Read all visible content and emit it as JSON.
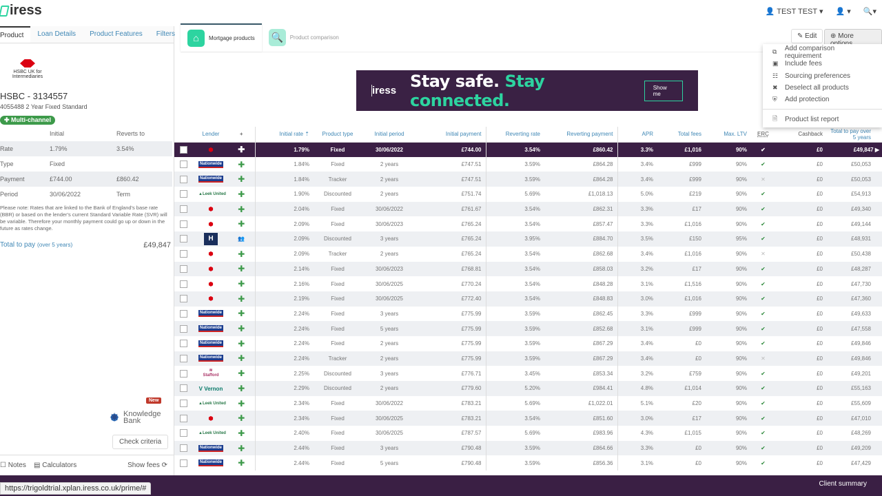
{
  "app": {
    "logo": "iress",
    "user": "TEST TEST"
  },
  "left": {
    "tabs": [
      "Product",
      "Loan Details",
      "Product Features",
      "Filters"
    ],
    "lender_logo": "HSBC UK for Intermediaries",
    "title": "HSBC - 3134557",
    "subtitle": "4055488 2 Year Fixed Standard",
    "badge": "Multi-channel",
    "headers": [
      "",
      "Initial",
      "Reverts to"
    ],
    "rows": [
      [
        "Rate",
        "1.79%",
        "3.54%"
      ],
      [
        "Type",
        "Fixed",
        ""
      ],
      [
        "Payment",
        "£744.00",
        "£860.42"
      ],
      [
        "Period",
        "30/06/2022",
        "Term"
      ]
    ],
    "note": "Please note: Rates that are linked to the Bank of England's base rate (BBR) or based on the lender's current Standard Variable Rate (SVR) will be variable. Therefore your monthly payment could go up or down in the future as rates change.",
    "total_label": "Total to pay",
    "total_sub": "(over 5 years)",
    "total_value": "£49,847",
    "new_badge": "New",
    "kb_line1": "Knowledge",
    "kb_line2": "Bank",
    "check_criteria": "Check criteria",
    "notes": "Notes",
    "calculators": "Calculators",
    "show_fees": "Show fees"
  },
  "main": {
    "tabs": [
      "Mortgage products",
      "Product comparison"
    ],
    "banner": {
      "logo": "iress",
      "text1": "Stay safe.",
      "text2": "Stay connected.",
      "button": "Show me"
    },
    "edit": "Edit",
    "more_options": "More options",
    "menu": [
      {
        "icon": "compare-icon",
        "label": "Add comparison requirement"
      },
      {
        "icon": "money-icon",
        "label": "Include fees"
      },
      {
        "icon": "table-icon",
        "label": "Sourcing preferences"
      },
      {
        "icon": "x-icon",
        "label": "Deselect all products"
      },
      {
        "icon": "shield-icon",
        "label": "Add protection"
      },
      {
        "icon": "report-icon",
        "label": "Product list report"
      }
    ],
    "columns": [
      "Lender",
      "+",
      "Initial rate ⇡",
      "Product type",
      "Initial period",
      "Initial payment",
      "Reverting rate",
      "Reverting payment",
      "APR",
      "Total fees",
      "Max. LTV",
      "ERC",
      "Cashback",
      "Total to pay over 5 years"
    ],
    "rows": [
      [
        "HSBC",
        "1.79%",
        "Fixed",
        "30/06/2022",
        "£744.00",
        "3.54%",
        "£860.42",
        "3.3%",
        "£1,016",
        "90%",
        true,
        "£0",
        "£49,847"
      ],
      [
        "Nationwide",
        "1.84%",
        "Fixed",
        "2 years",
        "£747.51",
        "3.59%",
        "£864.28",
        "3.4%",
        "£999",
        "90%",
        true,
        "£0",
        "£50,053"
      ],
      [
        "Nationwide",
        "1.84%",
        "Tracker",
        "2 years",
        "£747.51",
        "3.59%",
        "£864.28",
        "3.4%",
        "£999",
        "90%",
        false,
        "£0",
        "£50,053"
      ],
      [
        "Leek United",
        "1.90%",
        "Discounted",
        "2 years",
        "£751.74",
        "5.69%",
        "£1,018.13",
        "5.0%",
        "£219",
        "90%",
        true,
        "£0",
        "£54,913"
      ],
      [
        "HSBC",
        "2.04%",
        "Fixed",
        "30/06/2022",
        "£761.67",
        "3.54%",
        "£862.31",
        "3.3%",
        "£17",
        "90%",
        true,
        "£0",
        "£49,340"
      ],
      [
        "HSBC",
        "2.09%",
        "Fixed",
        "30/06/2023",
        "£765.24",
        "3.54%",
        "£857.47",
        "3.3%",
        "£1,016",
        "90%",
        true,
        "£0",
        "£49,144"
      ],
      [
        "H",
        "2.09%",
        "Discounted",
        "3 years",
        "£765.24",
        "3.95%",
        "£884.70",
        "3.5%",
        "£150",
        "95%",
        true,
        "£0",
        "£48,931"
      ],
      [
        "HSBC",
        "2.09%",
        "Tracker",
        "2 years",
        "£765.24",
        "3.54%",
        "£862.68",
        "3.4%",
        "£1,016",
        "90%",
        false,
        "£0",
        "£50,438"
      ],
      [
        "HSBC",
        "2.14%",
        "Fixed",
        "30/06/2023",
        "£768.81",
        "3.54%",
        "£858.03",
        "3.2%",
        "£17",
        "90%",
        true,
        "£0",
        "£48,287"
      ],
      [
        "HSBC",
        "2.16%",
        "Fixed",
        "30/06/2025",
        "£770.24",
        "3.54%",
        "£848.28",
        "3.1%",
        "£1,516",
        "90%",
        true,
        "£0",
        "£47,730"
      ],
      [
        "HSBC",
        "2.19%",
        "Fixed",
        "30/06/2025",
        "£772.40",
        "3.54%",
        "£848.83",
        "3.0%",
        "£1,016",
        "90%",
        true,
        "£0",
        "£47,360"
      ],
      [
        "Nationwide",
        "2.24%",
        "Fixed",
        "3 years",
        "£775.99",
        "3.59%",
        "£862.45",
        "3.3%",
        "£999",
        "90%",
        true,
        "£0",
        "£49,633"
      ],
      [
        "Nationwide",
        "2.24%",
        "Fixed",
        "5 years",
        "£775.99",
        "3.59%",
        "£852.68",
        "3.1%",
        "£999",
        "90%",
        true,
        "£0",
        "£47,558"
      ],
      [
        "Nationwide",
        "2.24%",
        "Fixed",
        "2 years",
        "£775.99",
        "3.59%",
        "£867.29",
        "3.4%",
        "£0",
        "90%",
        true,
        "£0",
        "£49,846"
      ],
      [
        "Nationwide",
        "2.24%",
        "Tracker",
        "2 years",
        "£775.99",
        "3.59%",
        "£867.29",
        "3.4%",
        "£0",
        "90%",
        false,
        "£0",
        "£49,846"
      ],
      [
        "Stafford",
        "2.25%",
        "Discounted",
        "3 years",
        "£776.71",
        "3.45%",
        "£853.34",
        "3.2%",
        "£759",
        "90%",
        true,
        "£0",
        "£49,201"
      ],
      [
        "Vernon",
        "2.29%",
        "Discounted",
        "2 years",
        "£779.60",
        "5.20%",
        "£984.41",
        "4.8%",
        "£1,014",
        "90%",
        true,
        "£0",
        "£55,163"
      ],
      [
        "Leek United",
        "2.34%",
        "Fixed",
        "30/06/2022",
        "£783.21",
        "5.69%",
        "£1,022.01",
        "5.1%",
        "£20",
        "90%",
        true,
        "£0",
        "£55,609"
      ],
      [
        "HSBC",
        "2.34%",
        "Fixed",
        "30/06/2025",
        "£783.21",
        "3.54%",
        "£851.60",
        "3.0%",
        "£17",
        "90%",
        true,
        "£0",
        "£47,010"
      ],
      [
        "Leek United",
        "2.40%",
        "Fixed",
        "30/06/2025",
        "£787.57",
        "5.69%",
        "£983.96",
        "4.3%",
        "£1,015",
        "90%",
        true,
        "£0",
        "£48,269"
      ],
      [
        "Nationwide",
        "2.44%",
        "Fixed",
        "3 years",
        "£790.48",
        "3.59%",
        "£864.66",
        "3.3%",
        "£0",
        "90%",
        true,
        "£0",
        "£49,209"
      ],
      [
        "Nationwide",
        "2.44%",
        "Fixed",
        "5 years",
        "£790.48",
        "3.59%",
        "£856.36",
        "3.1%",
        "£0",
        "90%",
        true,
        "£0",
        "£47,429"
      ]
    ]
  },
  "footer": {
    "client_summary": "Client summary",
    "url": "https://trigoldtrial.xplan.iress.co.uk/prime/#"
  },
  "colors": {
    "brand_purple": "#3b1f45",
    "accent_green": "#2dd4a0",
    "link_blue": "#3f87b5"
  }
}
